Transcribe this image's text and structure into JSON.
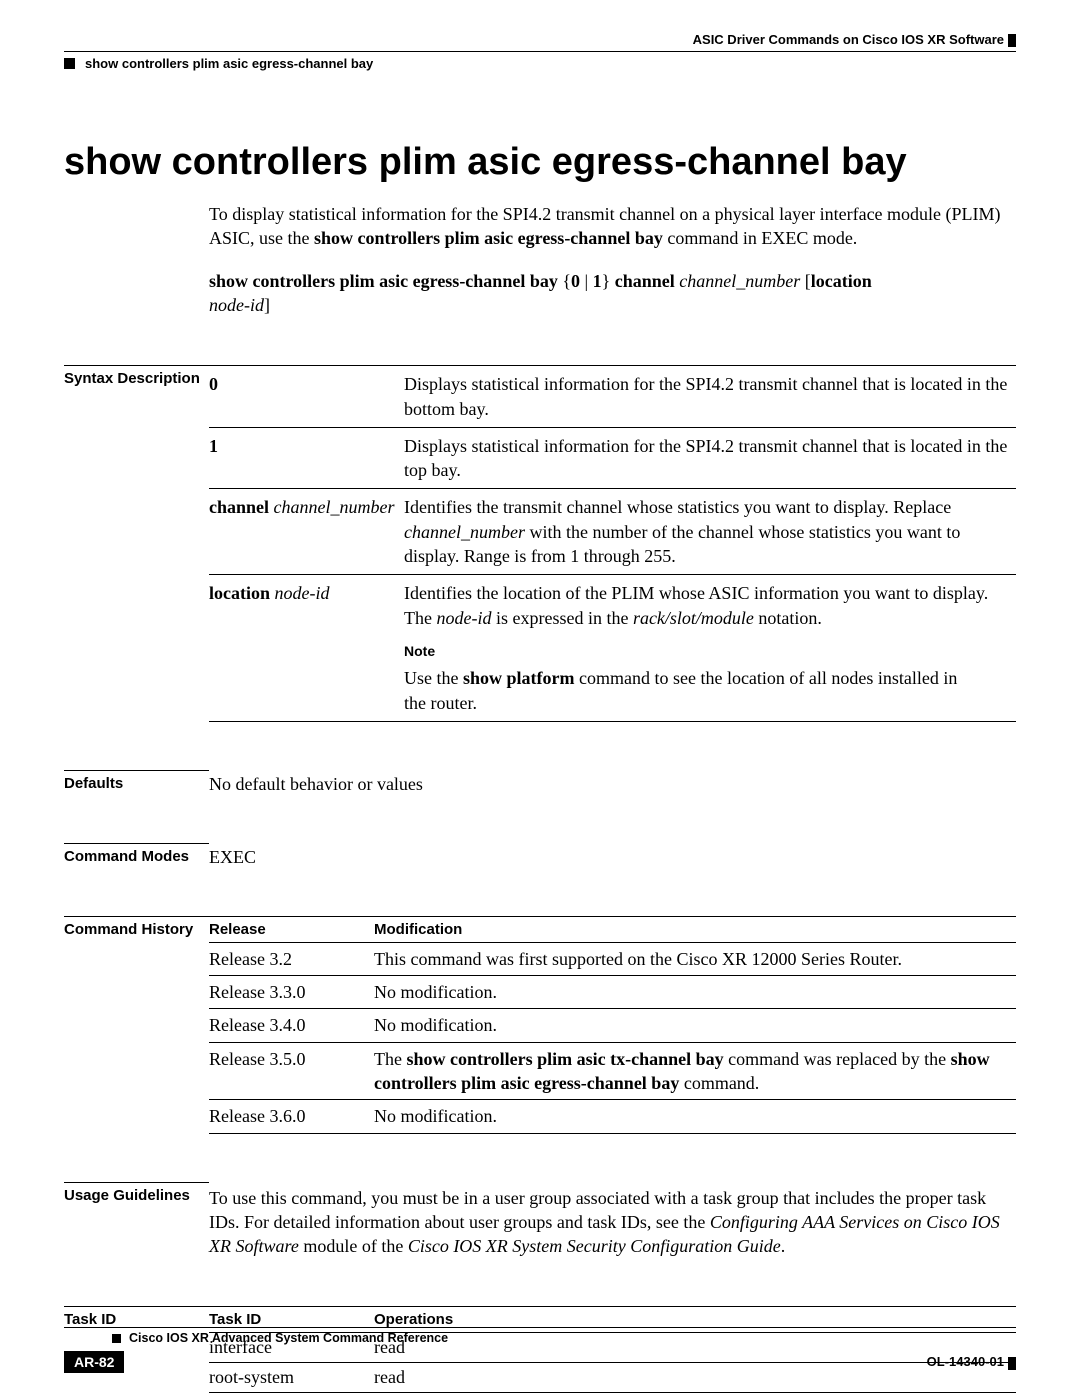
{
  "header": {
    "chapter": "ASIC Driver Commands on Cisco IOS XR Software",
    "command": "show controllers plim asic egress-channel bay"
  },
  "title": "show controllers plim asic egress-channel bay",
  "intro": {
    "p1_a": "To display statistical information for the SPI4.2 transmit channel on a physical layer interface module (PLIM) ASIC, use the ",
    "p1_b": "show controllers plim asic egress-channel bay",
    "p1_c": " command in EXEC mode."
  },
  "syntax": {
    "cmd": "show controllers plim asic egress-channel bay",
    "braces": " {",
    "opt0": "0",
    "pipe": " | ",
    "opt1": "1",
    "close": "} ",
    "channel": "channel",
    "channel_arg": " channel_number ",
    "lbr": "[",
    "location": "location",
    "node_id": "node-id",
    "rbr": "]"
  },
  "sections": {
    "syntax_desc": "Syntax Description",
    "defaults": "Defaults",
    "modes": "Command Modes",
    "history": "Command History",
    "usage": "Usage Guidelines",
    "task": "Task ID"
  },
  "syntax_rows": {
    "r0_key": "0",
    "r0_val": "Displays statistical information for the SPI4.2 transmit channel that is located in the bottom bay.",
    "r1_key": "1",
    "r1_val": "Displays statistical information for the SPI4.2 transmit channel that is located in the top bay.",
    "r2_key_b": "channel",
    "r2_key_i": " channel_number",
    "r2_val_a": "Identifies the transmit channel whose statistics you want to display. Replace ",
    "r2_val_i": "channel_number",
    "r2_val_b": " with the number of the channel whose statistics you want to display. Range is from 1 through 255.",
    "r3_key_b": "location",
    "r3_key_i": " node-id",
    "r3_val_a": "Identifies the location of the PLIM whose ASIC information you want to display. The ",
    "r3_val_i": "node-id",
    "r3_val_b": " is expressed in the ",
    "r3_val_i2": "rack/slot/module",
    "r3_val_c": " notation.",
    "note_label": "Note",
    "note_a": "Use the ",
    "note_b": "show platform",
    "note_c": " command to see the location of all nodes installed in the router."
  },
  "defaults_text": "No default behavior or values",
  "modes_text": "EXEC",
  "history": {
    "h1": "Release",
    "h2": "Modification",
    "rows": [
      {
        "rel": "Release 3.2",
        "mod": "This command was first supported on the Cisco XR 12000 Series Router."
      },
      {
        "rel": "Release 3.3.0",
        "mod": "No modification."
      },
      {
        "rel": "Release 3.4.0",
        "mod": "No modification."
      },
      {
        "rel": "Release 3.5.0",
        "mod_a": "The ",
        "mod_b1": "show controllers plim asic tx-channel bay",
        "mod_c": " command was replaced by the ",
        "mod_b2": "show controllers plim asic egress-channel bay",
        "mod_d": " command."
      },
      {
        "rel": "Release 3.6.0",
        "mod": "No modification."
      }
    ]
  },
  "usage": {
    "a": "To use this command, you must be in a user group associated with a task group that includes the proper task IDs. For detailed information about user groups and task IDs, see the ",
    "i1": "Configuring AAA Services on Cisco IOS XR Software",
    "b": " module of the ",
    "i2": "Cisco IOS XR System Security Configuration Guide",
    "c": "."
  },
  "task": {
    "h1": "Task ID",
    "h2": "Operations",
    "rows": [
      {
        "id": "interface",
        "op": "read"
      },
      {
        "id": "root-system",
        "op": "read"
      }
    ]
  },
  "footer": {
    "book": "Cisco IOS XR Advanced System Command Reference",
    "page": "AR-82",
    "docid": "OL-14340-01"
  }
}
